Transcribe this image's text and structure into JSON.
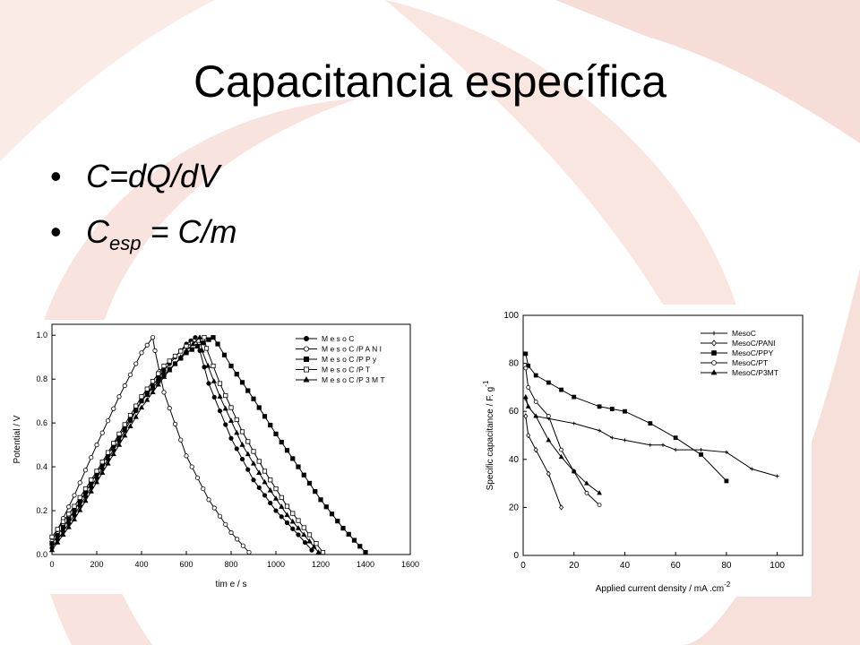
{
  "slide": {
    "title": "Capacitancia específica",
    "bullets": [
      {
        "main": "C=dQ/dV",
        "sub": "",
        "tail": ""
      },
      {
        "main": "C",
        "sub": "esp",
        "tail": " = C/m"
      }
    ]
  },
  "colors": {
    "background": "#ffffff",
    "decor": "#f7ddd7",
    "text": "#000000"
  },
  "chart_data": [
    {
      "type": "line",
      "xlabel": "tim e  / s",
      "ylabel": "Potential / V",
      "xlim": [
        0,
        1600
      ],
      "ylim": [
        0,
        1.05
      ],
      "xticks": [
        "0",
        "200",
        "400",
        "600",
        "800",
        "1000",
        "1200",
        "1400",
        "1600"
      ],
      "yticks": [
        "0.0",
        "0.2",
        "0.4",
        "0.6",
        "0.8",
        "1.0"
      ],
      "legend_position": "top-right",
      "series": [
        {
          "name": "M e s o C",
          "marker": "circle-filled",
          "points": [
            [
              0,
              0.03
            ],
            [
              100,
              0.18
            ],
            [
              200,
              0.35
            ],
            [
              300,
              0.52
            ],
            [
              400,
              0.7
            ],
            [
              500,
              0.84
            ],
            [
              600,
              0.96
            ],
            [
              640,
              0.99
            ],
            [
              660,
              0.93
            ],
            [
              700,
              0.78
            ],
            [
              800,
              0.53
            ],
            [
              900,
              0.34
            ],
            [
              1000,
              0.2
            ],
            [
              1100,
              0.09
            ],
            [
              1160,
              0.02
            ]
          ]
        },
        {
          "name": "M e s o C /P A N I",
          "marker": "circle-open",
          "points": [
            [
              0,
              0.06
            ],
            [
              100,
              0.27
            ],
            [
              200,
              0.5
            ],
            [
              300,
              0.72
            ],
            [
              400,
              0.92
            ],
            [
              450,
              0.99
            ],
            [
              460,
              0.93
            ],
            [
              500,
              0.74
            ],
            [
              600,
              0.45
            ],
            [
              700,
              0.25
            ],
            [
              800,
              0.1
            ],
            [
              880,
              0.01
            ]
          ]
        },
        {
          "name": "M e s o C /P P y",
          "marker": "square-filled",
          "points": [
            [
              0,
              0.05
            ],
            [
              100,
              0.2
            ],
            [
              200,
              0.37
            ],
            [
              300,
              0.54
            ],
            [
              400,
              0.7
            ],
            [
              500,
              0.82
            ],
            [
              600,
              0.92
            ],
            [
              700,
              0.98
            ],
            [
              720,
              0.99
            ],
            [
              740,
              0.96
            ],
            [
              800,
              0.86
            ],
            [
              900,
              0.71
            ],
            [
              1000,
              0.55
            ],
            [
              1100,
              0.4
            ],
            [
              1200,
              0.25
            ],
            [
              1300,
              0.12
            ],
            [
              1400,
              0.01
            ]
          ]
        },
        {
          "name": "M e s o C /P T",
          "marker": "square-open",
          "points": [
            [
              0,
              0.08
            ],
            [
              100,
              0.22
            ],
            [
              200,
              0.38
            ],
            [
              300,
              0.55
            ],
            [
              400,
              0.72
            ],
            [
              500,
              0.86
            ],
            [
              600,
              0.95
            ],
            [
              680,
              0.99
            ],
            [
              690,
              0.94
            ],
            [
              750,
              0.78
            ],
            [
              850,
              0.56
            ],
            [
              950,
              0.38
            ],
            [
              1050,
              0.22
            ],
            [
              1150,
              0.09
            ],
            [
              1210,
              0.01
            ]
          ]
        },
        {
          "name": "M e s o C /P 3 M T",
          "marker": "triangle-filled",
          "points": [
            [
              0,
              0.02
            ],
            [
              100,
              0.16
            ],
            [
              200,
              0.33
            ],
            [
              300,
              0.5
            ],
            [
              400,
              0.67
            ],
            [
              500,
              0.81
            ],
            [
              600,
              0.93
            ],
            [
              660,
              0.99
            ],
            [
              670,
              0.93
            ],
            [
              750,
              0.72
            ],
            [
              850,
              0.5
            ],
            [
              950,
              0.33
            ],
            [
              1050,
              0.18
            ],
            [
              1150,
              0.06
            ],
            [
              1190,
              0.01
            ]
          ]
        }
      ]
    },
    {
      "type": "line",
      "xlabel": "Applied current density / mA .cm",
      "xlabel_sup": "-2",
      "ylabel": "Specific capacitance / F. g",
      "ylabel_sup": "-1",
      "xlim": [
        0,
        110
      ],
      "ylim": [
        0,
        100
      ],
      "xticks": [
        "0",
        "20",
        "40",
        "60",
        "80",
        "100"
      ],
      "yticks": [
        "0",
        "20",
        "40",
        "60",
        "80",
        "100"
      ],
      "legend_position": "top-right",
      "series": [
        {
          "name": "MesoC",
          "marker": "plus",
          "points": [
            [
              1,
              65
            ],
            [
              2,
              62
            ],
            [
              5,
              58
            ],
            [
              10,
              57
            ],
            [
              20,
              55
            ],
            [
              30,
              52
            ],
            [
              35,
              49
            ],
            [
              40,
              48
            ],
            [
              50,
              46
            ],
            [
              55,
              46
            ],
            [
              60,
              44
            ],
            [
              70,
              44
            ],
            [
              80,
              43
            ],
            [
              90,
              36
            ],
            [
              100,
              33
            ]
          ]
        },
        {
          "name": "MesoC/PANI",
          "marker": "diamond-open",
          "points": [
            [
              1,
              58
            ],
            [
              2,
              50
            ],
            [
              5,
              44
            ],
            [
              10,
              34
            ],
            [
              15,
              20
            ]
          ]
        },
        {
          "name": "MesoC/PPY",
          "marker": "square-filled",
          "points": [
            [
              1,
              84
            ],
            [
              2,
              79
            ],
            [
              5,
              75
            ],
            [
              10,
              72
            ],
            [
              15,
              69
            ],
            [
              20,
              66
            ],
            [
              30,
              62
            ],
            [
              35,
              61
            ],
            [
              40,
              60
            ],
            [
              50,
              55
            ],
            [
              60,
              49
            ],
            [
              70,
              42
            ],
            [
              80,
              31
            ]
          ]
        },
        {
          "name": "MesoC/PT",
          "marker": "circle-open",
          "points": [
            [
              1,
              78
            ],
            [
              2,
              70
            ],
            [
              5,
              64
            ],
            [
              10,
              58
            ],
            [
              15,
              44
            ],
            [
              20,
              35
            ],
            [
              25,
              26
            ],
            [
              30,
              21
            ]
          ]
        },
        {
          "name": "MesoC/P3MT",
          "marker": "triangle-filled",
          "points": [
            [
              1,
              66
            ],
            [
              2,
              62
            ],
            [
              5,
              58
            ],
            [
              10,
              48
            ],
            [
              15,
              41
            ],
            [
              20,
              35
            ],
            [
              25,
              30
            ],
            [
              30,
              26
            ]
          ]
        }
      ]
    }
  ]
}
